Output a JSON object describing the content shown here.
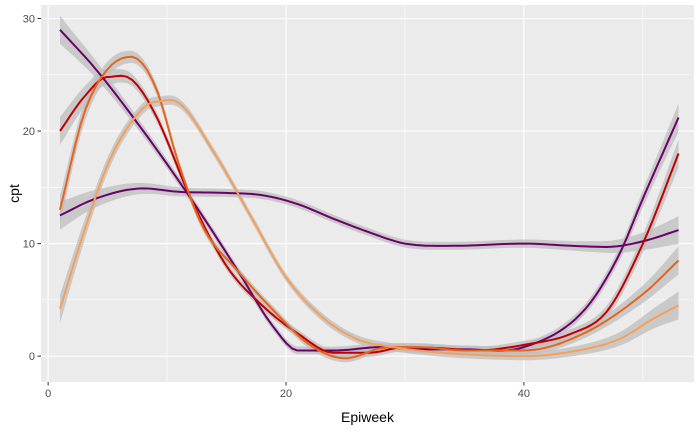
{
  "chart_data": {
    "type": "line",
    "xlabel": "Epiweek",
    "ylabel": "cpt",
    "xlim": [
      -0.6,
      54.3
    ],
    "ylim": [
      -2.3,
      31.2
    ],
    "x_ticks": [
      0,
      20,
      40
    ],
    "y_ticks": [
      0,
      10,
      20,
      30
    ],
    "grid": true,
    "background": "#ebebeb",
    "gridline_color": "#ffffff",
    "confidence_band_color": "#bebebe",
    "series": [
      {
        "color": "#6a006a",
        "x": [
          1,
          4,
          8,
          12,
          16,
          19,
          21,
          24,
          28,
          31,
          35,
          40,
          45,
          48,
          50,
          53
        ],
        "y": [
          29,
          25.5,
          20,
          14,
          7.5,
          2.5,
          0.5,
          0.5,
          0.8,
          0.6,
          0.6,
          0.8,
          4,
          9,
          14,
          21.2
        ]
      },
      {
        "color": "#6a006a",
        "x": [
          1,
          4,
          8,
          11,
          15,
          18,
          21,
          24,
          27,
          30,
          34,
          40,
          44,
          47,
          50,
          53
        ],
        "y": [
          12.5,
          14,
          14.9,
          14.6,
          14.5,
          14.3,
          13.5,
          12.2,
          11,
          10,
          9.8,
          10,
          9.8,
          9.7,
          10.2,
          11.2
        ]
      },
      {
        "color": "#c00000",
        "x": [
          1,
          3,
          5,
          7,
          9,
          12,
          15,
          18,
          21,
          24,
          27,
          30,
          33,
          36,
          40,
          44,
          47,
          50,
          53
        ],
        "y": [
          20,
          23,
          24.8,
          24.6,
          21.5,
          14,
          8,
          4.5,
          2,
          0.3,
          0.3,
          0.8,
          0.7,
          0.5,
          1,
          2,
          4,
          10,
          18
        ]
      },
      {
        "color": "#e8641a",
        "x": [
          1,
          3,
          5,
          7,
          9,
          11,
          13,
          16,
          19,
          22,
          25,
          28,
          31,
          35,
          40,
          45,
          50,
          53
        ],
        "y": [
          13,
          21.5,
          25.5,
          26.6,
          24,
          17,
          11.5,
          7.5,
          4,
          1,
          -0.2,
          0.7,
          0.8,
          0.5,
          0.5,
          2,
          5.5,
          8.5
        ]
      },
      {
        "color": "#f5a05a",
        "x": [
          1,
          3,
          5,
          7,
          9,
          11,
          14,
          17,
          20,
          23,
          26,
          29,
          32,
          36,
          40,
          44,
          48,
          51,
          53
        ],
        "y": [
          4.2,
          11,
          17,
          20.8,
          22.6,
          22.5,
          18,
          12.5,
          7,
          3.5,
          1.5,
          0.8,
          0.4,
          0.1,
          0,
          0.4,
          1.5,
          3.4,
          4.5
        ]
      }
    ]
  }
}
